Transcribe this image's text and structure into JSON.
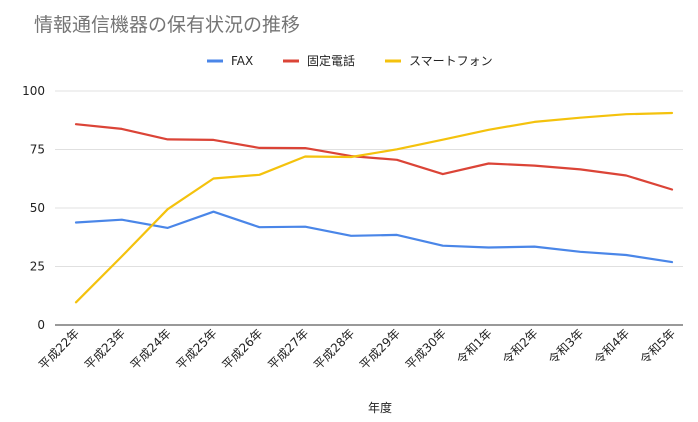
{
  "chart_data": {
    "type": "line",
    "title": "情報通信機器の保有状況の推移",
    "xlabel": "年度",
    "ylabel": "",
    "ylim": [
      0,
      100
    ],
    "yticks": [
      0,
      25,
      50,
      75,
      100
    ],
    "grid": true,
    "legend_position": "top",
    "categories": [
      "平成22年",
      "平成23年",
      "平成24年",
      "平成25年",
      "平成26年",
      "平成27年",
      "平成28年",
      "平成29年",
      "平成30年",
      "令和1年",
      "令和2年",
      "令和3年",
      "令和4年",
      "令和5年"
    ],
    "series": [
      {
        "name": "FAX",
        "color": "#4a86e8",
        "values": [
          43.8,
          45.0,
          41.5,
          48.4,
          41.8,
          42.0,
          38.1,
          38.5,
          33.9,
          33.1,
          33.5,
          31.3,
          29.9,
          26.9
        ]
      },
      {
        "name": "固定電話",
        "color": "#db4437",
        "values": [
          85.8,
          83.8,
          79.3,
          79.1,
          75.7,
          75.6,
          72.2,
          70.6,
          64.5,
          69.0,
          68.1,
          66.5,
          63.9,
          57.9
        ]
      },
      {
        "name": "スマートフォン",
        "color": "#f4c20d",
        "values": [
          9.7,
          29.3,
          49.5,
          62.6,
          64.2,
          72.0,
          71.8,
          75.1,
          79.2,
          83.4,
          86.8,
          88.6,
          90.1,
          90.6
        ]
      }
    ]
  }
}
